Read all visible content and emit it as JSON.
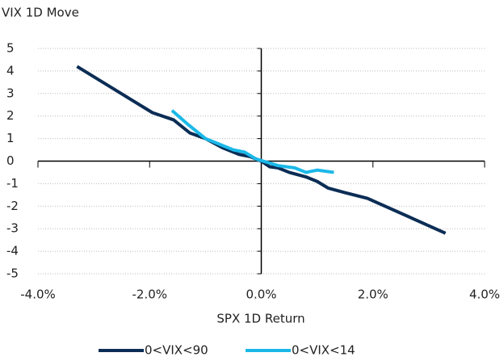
{
  "chart_data": {
    "type": "line",
    "y_axis_title": "VIX 1D Move",
    "x_axis_title": "SPX 1D Return",
    "xlim": [
      -4,
      4
    ],
    "xticks": [
      {
        "value": -4,
        "label": "-4.0%"
      },
      {
        "value": -2,
        "label": "-2.0%"
      },
      {
        "value": 0,
        "label": "0.0%"
      },
      {
        "value": 2,
        "label": "2.0%"
      },
      {
        "value": 4,
        "label": "4.0%"
      }
    ],
    "ylim": [
      -5,
      5
    ],
    "yticks": [
      -5,
      -4,
      -3,
      -2,
      -1,
      0,
      1,
      2,
      3,
      4,
      5
    ],
    "grid": true,
    "legend": "bottom",
    "series": [
      {
        "name": "0<VIX<90",
        "color": "#0b2d55",
        "x": [
          -3.3,
          -1.95,
          -1.57,
          -1.28,
          -1.0,
          -0.7,
          -0.4,
          -0.2,
          0,
          0.15,
          0.3,
          0.5,
          0.8,
          1.0,
          1.2,
          1.5,
          1.9,
          3.3
        ],
        "values": [
          4.2,
          2.15,
          1.83,
          1.25,
          1.0,
          0.6,
          0.3,
          0.2,
          0,
          -0.25,
          -0.3,
          -0.5,
          -0.7,
          -0.9,
          -1.2,
          -1.4,
          -1.65,
          -3.2
        ]
      },
      {
        "name": "0<VIX<14",
        "color": "#1ab8e8",
        "x": [
          -1.6,
          -1.3,
          -1.0,
          -0.7,
          -0.5,
          -0.3,
          -0.1,
          0.1,
          0.3,
          0.6,
          0.8,
          1.0,
          1.3
        ],
        "values": [
          2.25,
          1.6,
          1.0,
          0.7,
          0.5,
          0.4,
          0.1,
          -0.05,
          -0.2,
          -0.3,
          -0.5,
          -0.4,
          -0.5
        ]
      }
    ]
  }
}
